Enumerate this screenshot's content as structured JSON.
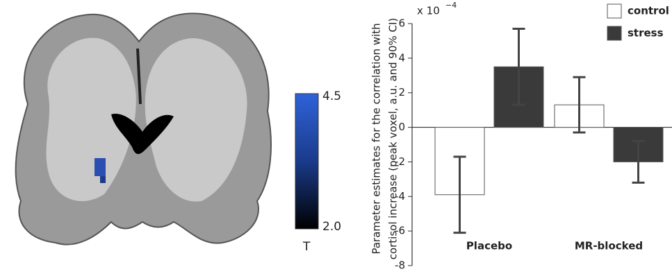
{
  "brain_panel": {
    "colorbar": {
      "max": 4.5,
      "min": {
        "value": 2,
        "label": "2.0"
      },
      "label": "T"
    }
  },
  "chart_data": {
    "type": "bar",
    "y_label": [
      "Parameter estimates for the correlation with",
      "cortisol increase (peak voxel, a.u. and 90% CI)"
    ],
    "y_multiplier": "x 10",
    "y_multiplier_exponent": "−4",
    "categories": [
      "Placebo",
      "MR-blocked"
    ],
    "series": [
      {
        "name": "control",
        "color": "#ffffff",
        "values": [
          -3.9,
          1.3
        ],
        "errors": [
          2.2,
          1.6
        ]
      },
      {
        "name": "stress",
        "color": "#3a3a3a",
        "values": [
          3.5,
          -2.0
        ],
        "errors": [
          2.2,
          1.2
        ]
      }
    ],
    "ylim": [
      -8,
      6
    ],
    "yticks": [
      -8,
      -6,
      -4,
      -2,
      0,
      2,
      4,
      6
    ],
    "legend": "top-right"
  }
}
